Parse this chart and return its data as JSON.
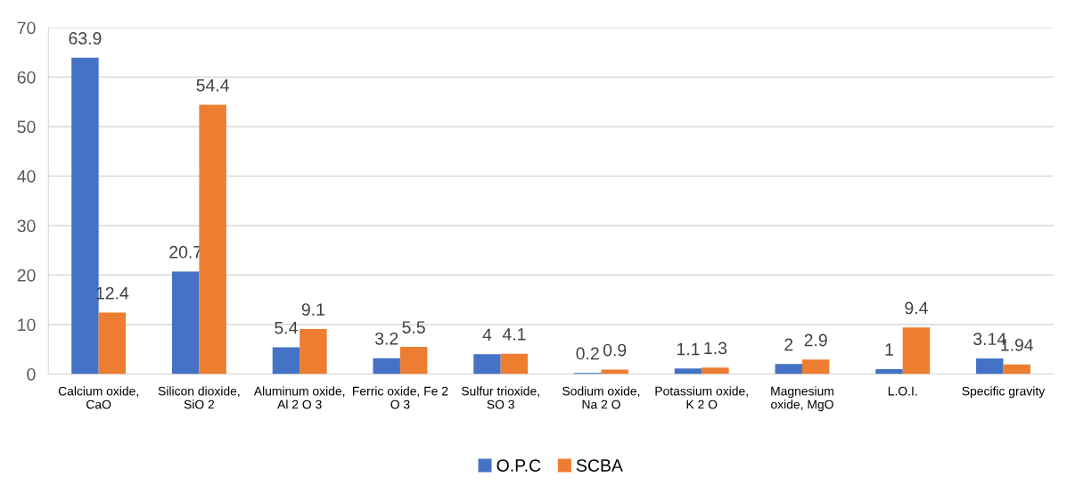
{
  "chart_data": {
    "type": "bar",
    "categories": [
      "Calcium oxide,\nCaO",
      "Silicon dioxide,\nSiO 2",
      "Aluminum oxide,\nAl 2 O 3",
      "Ferric oxide, Fe 2\nO 3",
      "Sulfur trioxide,\nSO 3",
      "Sodium oxide,\nNa 2 O",
      "Potassium oxide,\nK 2 O",
      "Magnesium\noxide, MgO",
      "L.O.I.",
      "Specific gravity"
    ],
    "series": [
      {
        "name": "O.P.C",
        "color": "#4472c4",
        "values": [
          63.9,
          20.7,
          5.4,
          3.2,
          4,
          0.2,
          1.1,
          2,
          1,
          3.14
        ]
      },
      {
        "name": "SCBA",
        "color": "#ed7d31",
        "values": [
          12.4,
          54.4,
          9.1,
          5.5,
          4.1,
          0.9,
          1.3,
          2.9,
          9.4,
          1.94
        ]
      }
    ],
    "ylim": [
      0,
      70
    ],
    "yticks": [
      0,
      10,
      20,
      30,
      40,
      50,
      60,
      70
    ],
    "grid": "y",
    "legend": "bottom",
    "data_labels": true
  }
}
